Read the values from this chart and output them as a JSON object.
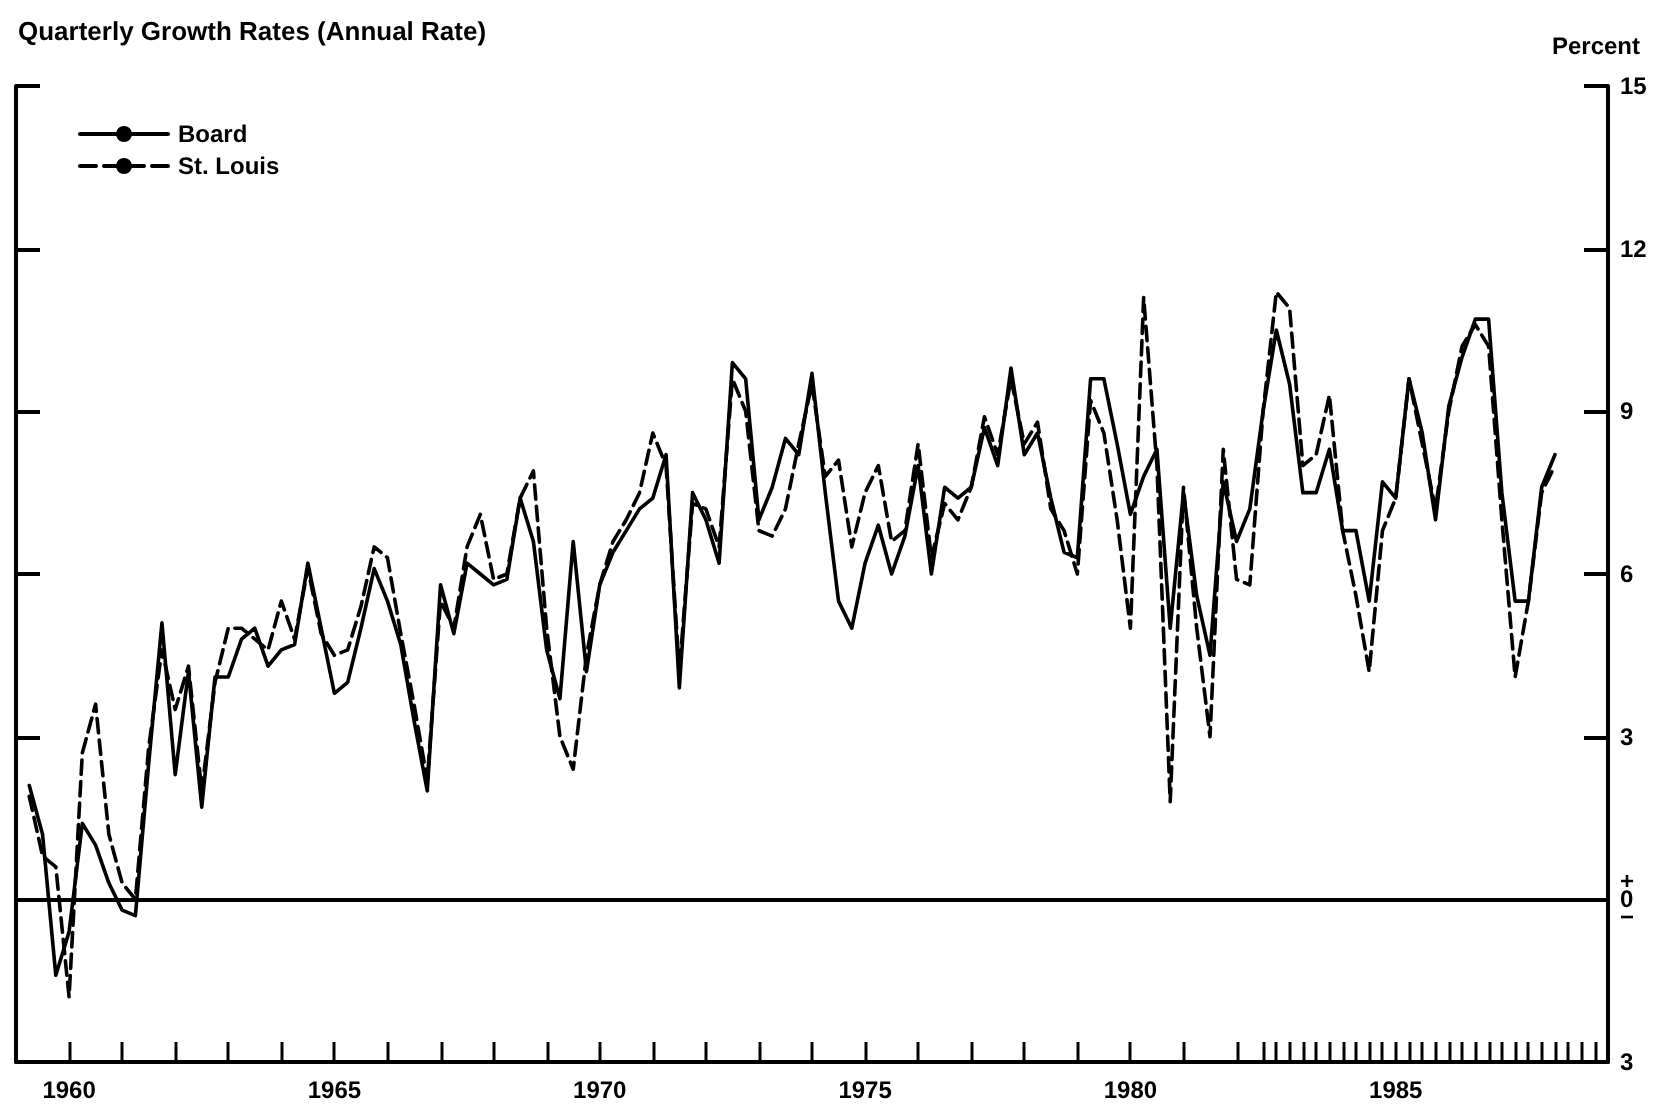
{
  "chart_data": {
    "type": "line",
    "title": "Quarterly Growth Rates (Annual Rate)",
    "ylabel": "Percent",
    "legend": "top left",
    "grid": false,
    "marker": "none",
    "xlim": [
      1959,
      1989
    ],
    "ylim": [
      -3,
      15
    ],
    "yticks": [
      {
        "value": -3,
        "label": "3"
      },
      {
        "value": 0,
        "label": "+\n0\n−"
      },
      3,
      6,
      9,
      12,
      15
    ],
    "xticks": [
      1960,
      {
        "value": 1961,
        "label": null
      },
      {
        "value": 1962,
        "label": null
      },
      {
        "value": 1963,
        "label": null
      },
      {
        "value": 1964,
        "label": null
      },
      1965,
      {
        "value": 1966,
        "label": null
      },
      {
        "value": 1967,
        "label": null
      },
      {
        "value": 1968,
        "label": null
      },
      {
        "value": 1969,
        "label": null
      },
      1970,
      {
        "value": 1971,
        "label": null
      },
      {
        "value": 1972,
        "label": null
      },
      {
        "value": 1973,
        "label": null
      },
      {
        "value": 1974,
        "label": null
      },
      1975,
      {
        "value": 1976,
        "label": null
      },
      {
        "value": 1977,
        "label": null
      },
      {
        "value": 1978,
        "label": null
      },
      {
        "value": 1979,
        "label": null
      },
      1980,
      {
        "value": 1981,
        "label": null
      },
      {
        "value": 1982,
        "label": null
      },
      {
        "value": 1982.5,
        "label": null
      },
      {
        "value": 1982.75,
        "label": null
      },
      {
        "value": 1983,
        "label": null
      },
      {
        "value": 1983.25,
        "label": null
      },
      {
        "value": 1983.5,
        "label": null
      },
      {
        "value": 1983.75,
        "label": null
      },
      {
        "value": 1984,
        "label": null
      },
      {
        "value": 1984.25,
        "label": null
      },
      {
        "value": 1984.5,
        "label": null
      },
      {
        "value": 1984.75,
        "label": null
      },
      1985,
      {
        "value": 1985.25,
        "label": null
      },
      {
        "value": 1985.5,
        "label": null
      },
      {
        "value": 1985.75,
        "label": null
      },
      {
        "value": 1986,
        "label": null
      },
      {
        "value": 1986.25,
        "label": null
      },
      {
        "value": 1986.5,
        "label": null
      },
      {
        "value": 1986.75,
        "label": null
      },
      {
        "value": 1987,
        "label": null
      },
      {
        "value": 1987.25,
        "label": null
      },
      {
        "value": 1987.5,
        "label": null
      },
      {
        "value": 1987.75,
        "label": null
      },
      {
        "value": 1988,
        "label": null
      },
      {
        "value": 1988.25,
        "label": null
      },
      {
        "value": 1988.5,
        "label": null
      },
      {
        "value": 1988.75,
        "label": null
      }
    ],
    "ref_lines": [
      {
        "axis": "y",
        "value": 0,
        "color": "#000000",
        "line_style": "solid"
      }
    ],
    "x": [
      1959.25,
      1959.5,
      1959.75,
      1960,
      1960.25,
      1960.5,
      1960.75,
      1961,
      1961.25,
      1961.5,
      1961.75,
      1962,
      1962.25,
      1962.5,
      1962.75,
      1963,
      1963.25,
      1963.5,
      1963.75,
      1964,
      1964.25,
      1964.5,
      1964.75,
      1965,
      1965.25,
      1965.5,
      1965.75,
      1966,
      1966.25,
      1966.5,
      1966.75,
      1967,
      1967.25,
      1967.5,
      1967.75,
      1968,
      1968.25,
      1968.5,
      1968.75,
      1969,
      1969.25,
      1969.5,
      1969.75,
      1970,
      1970.25,
      1970.5,
      1970.75,
      1971,
      1971.25,
      1971.5,
      1971.75,
      1972,
      1972.25,
      1972.5,
      1972.75,
      1973,
      1973.25,
      1973.5,
      1973.75,
      1974,
      1974.25,
      1974.5,
      1974.75,
      1975,
      1975.25,
      1975.5,
      1975.75,
      1976,
      1976.25,
      1976.5,
      1976.75,
      1977,
      1977.25,
      1977.5,
      1977.75,
      1978,
      1978.25,
      1978.5,
      1978.75,
      1979,
      1979.25,
      1979.5,
      1979.75,
      1980,
      1980.25,
      1980.5,
      1980.75,
      1981,
      1981.25,
      1981.5,
      1981.75,
      1982,
      1982.25,
      1982.5,
      1982.75,
      1983,
      1983.25,
      1983.5,
      1983.75,
      1984,
      1984.25,
      1984.5,
      1984.75,
      1985,
      1985.25,
      1985.5,
      1985.75,
      1986,
      1986.25,
      1986.5,
      1986.75,
      1987,
      1987.25,
      1987.5,
      1987.75,
      1988
    ],
    "series": [
      {
        "name": "Board",
        "color": "#000000",
        "line_style": "solid",
        "values": [
          2.1,
          1.2,
          -1.4,
          -0.6,
          1.4,
          1.0,
          0.3,
          -0.2,
          -0.3,
          2.5,
          5.1,
          2.3,
          4.2,
          1.7,
          4.1,
          4.1,
          4.8,
          5.0,
          4.3,
          4.6,
          4.7,
          6.2,
          5.0,
          3.8,
          4.0,
          5.0,
          6.1,
          5.5,
          4.7,
          3.3,
          2.0,
          5.8,
          4.9,
          6.2,
          6.0,
          5.8,
          5.9,
          7.4,
          6.6,
          4.6,
          3.7,
          6.6,
          4.2,
          5.8,
          6.4,
          6.8,
          7.2,
          7.4,
          8.2,
          3.9,
          7.5,
          7.0,
          6.2,
          9.9,
          9.6,
          7.0,
          7.6,
          8.5,
          8.2,
          9.7,
          7.5,
          5.5,
          5.0,
          6.2,
          6.9,
          6.0,
          6.7,
          8.0,
          6.0,
          7.6,
          7.4,
          7.6,
          8.7,
          8.0,
          9.8,
          8.2,
          8.6,
          7.4,
          6.4,
          6.3,
          9.6,
          9.6,
          8.4,
          7.1,
          7.8,
          8.3,
          5.0,
          7.5,
          5.6,
          4.5,
          7.7,
          6.6,
          7.2,
          9.0,
          10.5,
          9.5,
          7.5,
          7.5,
          8.3,
          6.8,
          6.8,
          5.5,
          7.7,
          7.4,
          9.6,
          8.6,
          7.0,
          9.1,
          10.0,
          10.7,
          10.7,
          7.5,
          5.5,
          5.5,
          7.6,
          8.2
        ]
      },
      {
        "name": "St. Louis",
        "color": "#000000",
        "line_style": "dashed",
        "values": [
          1.9,
          0.8,
          0.6,
          -1.8,
          2.7,
          3.6,
          1.2,
          0.3,
          0.0,
          2.8,
          4.6,
          3.5,
          4.3,
          2.0,
          4.0,
          5.0,
          5.0,
          4.8,
          4.6,
          5.5,
          4.8,
          6.1,
          4.9,
          4.5,
          4.6,
          5.4,
          6.5,
          6.3,
          4.9,
          3.6,
          2.2,
          5.5,
          5.0,
          6.5,
          7.1,
          5.9,
          6.0,
          7.4,
          7.9,
          5.0,
          3.0,
          2.4,
          4.5,
          5.8,
          6.6,
          7.0,
          7.5,
          8.6,
          8.0,
          4.2,
          7.3,
          7.2,
          6.5,
          9.6,
          9.0,
          6.8,
          6.7,
          7.2,
          8.4,
          9.5,
          7.8,
          8.1,
          6.5,
          7.5,
          8.0,
          6.6,
          6.8,
          8.4,
          6.3,
          7.3,
          7.0,
          7.6,
          8.9,
          8.2,
          9.6,
          8.4,
          8.8,
          7.2,
          6.8,
          6.0,
          9.2,
          8.6,
          7.0,
          5.0,
          11.1,
          8.0,
          1.8,
          7.6,
          5.0,
          3.0,
          8.3,
          5.9,
          5.8,
          9.0,
          11.2,
          10.9,
          8.0,
          8.2,
          9.3,
          6.8,
          5.6,
          4.2,
          6.8,
          7.4,
          9.6,
          8.4,
          7.2,
          9.0,
          10.2,
          10.6,
          10.2,
          7.0,
          4.1,
          5.5,
          7.5,
          8.0
        ]
      }
    ]
  }
}
